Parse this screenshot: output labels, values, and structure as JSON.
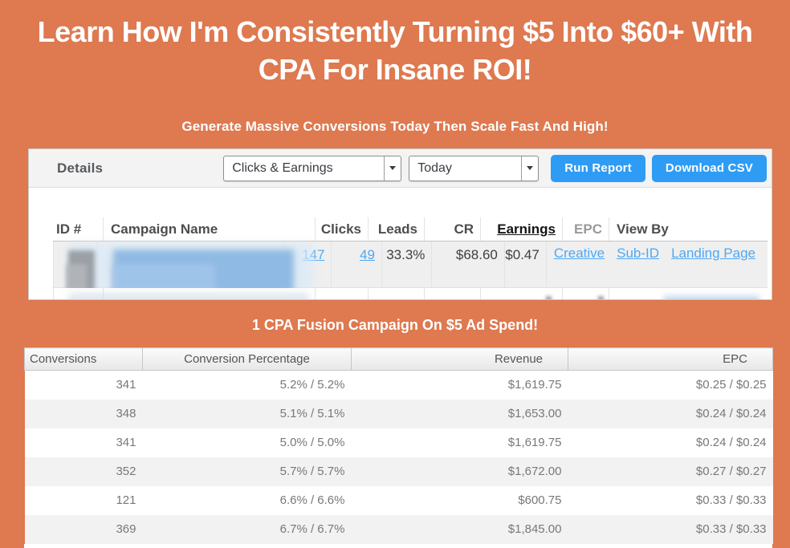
{
  "theme": {
    "orange_bg": "#DE7950",
    "button_blue": "#2E9CF5",
    "link_blue": "#4FA8F2"
  },
  "hero": {
    "title_line1": "Learn How I'm Consistently Turning $5 Into $60+ With",
    "title_line2": "CPA For Insane ROI!",
    "subtitle": "Generate Massive Conversions Today Then Scale Fast And High!"
  },
  "report_panel": {
    "title": "Details",
    "metric_select": {
      "value": "Clicks & Earnings"
    },
    "date_select": {
      "value": "Today"
    },
    "run_report_label": "Run Report",
    "download_csv_label": "Download CSV",
    "table": {
      "headers": [
        "ID #",
        "Campaign Name",
        "Clicks",
        "Leads",
        "CR",
        "Earnings",
        "EPC",
        "View By"
      ],
      "sorted_column": "Earnings",
      "row": {
        "clicks": "147",
        "leads": "49",
        "cr": "33.3%",
        "earnings": "$68.60",
        "epc": "$0.47",
        "view_by_links": {
          "creative": "Creative",
          "sub_id": "Sub-ID",
          "landing_page": "Landing Page"
        }
      }
    }
  },
  "caption": "1 CPA Fusion Campaign On $5 Ad Spend!",
  "stats_table": {
    "headers": [
      "Conversions",
      "Conversion Percentage",
      "Revenue",
      "EPC"
    ],
    "rows": [
      [
        "341",
        "5.2% / 5.2%",
        "$1,619.75",
        "$0.25 / $0.25"
      ],
      [
        "348",
        "5.1% / 5.1%",
        "$1,653.00",
        "$0.24 / $0.24"
      ],
      [
        "341",
        "5.0% / 5.0%",
        "$1,619.75",
        "$0.24 / $0.24"
      ],
      [
        "352",
        "5.7% / 5.7%",
        "$1,672.00",
        "$0.27 / $0.27"
      ],
      [
        "121",
        "6.6% / 6.6%",
        "$600.75",
        "$0.33 / $0.33"
      ],
      [
        "369",
        "6.7% / 6.7%",
        "$1,845.00",
        "$0.33 / $0.33"
      ]
    ]
  }
}
